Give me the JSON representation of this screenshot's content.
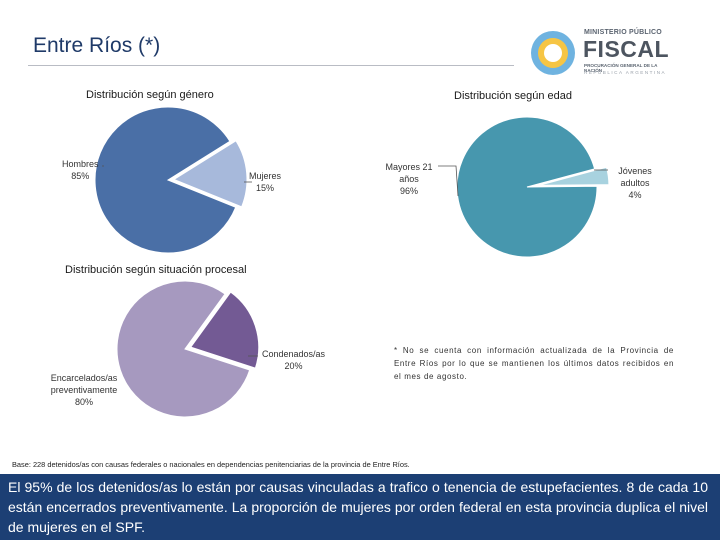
{
  "page": {
    "title": "Entre Ríos (*)",
    "note": "* No se cuenta con información actualizada de la Provincia de Entre Ríos por lo que se mantienen los últimos datos recibidos en el mes de agosto.",
    "base": "Base: 228 detenidos/as con causas federales o nacionales en dependencias penitenciarias de la provincia de Entre Ríos.",
    "footer": "El 95% de los detenidos/as lo están por causas vinculadas a trafico o tenencia de estupefacientes. 8 de cada 10 están encerrados preventivamente. La proporción de mujeres por orden federal en esta provincia duplica el nivel de mujeres en el SPF."
  },
  "logo": {
    "line1": "MINISTERIO PÚBLICO",
    "line2": "FISCAL",
    "line3": "PROCURACIÓN GENERAL DE LA NACIÓN",
    "line4": "REPÚBLICA ARGENTINA"
  },
  "chart_data": [
    {
      "type": "pie",
      "title": "Distribución según género",
      "slices": [
        {
          "label": "Hombres",
          "value": 85,
          "display": "85%",
          "color": "#4a6fa6"
        },
        {
          "label": "Mujeres",
          "value": 15,
          "display": "15%",
          "color": "#a7b9db"
        }
      ]
    },
    {
      "type": "pie",
      "title": "Distribución según edad",
      "slices": [
        {
          "label": "Mayores 21 años",
          "value": 96,
          "display": "96%",
          "color": "#4797ae"
        },
        {
          "label": "Jóvenes adultos",
          "value": 4,
          "display": "4%",
          "color": "#a8d2df"
        }
      ]
    },
    {
      "type": "pie",
      "title": "Distribución según situación procesal",
      "slices": [
        {
          "label": "Encarcelados/as preventivamente",
          "value": 80,
          "display": "80%",
          "color": "#a699bf"
        },
        {
          "label": "Condenados/as",
          "value": 20,
          "display": "20%",
          "color": "#735a94"
        }
      ]
    }
  ]
}
